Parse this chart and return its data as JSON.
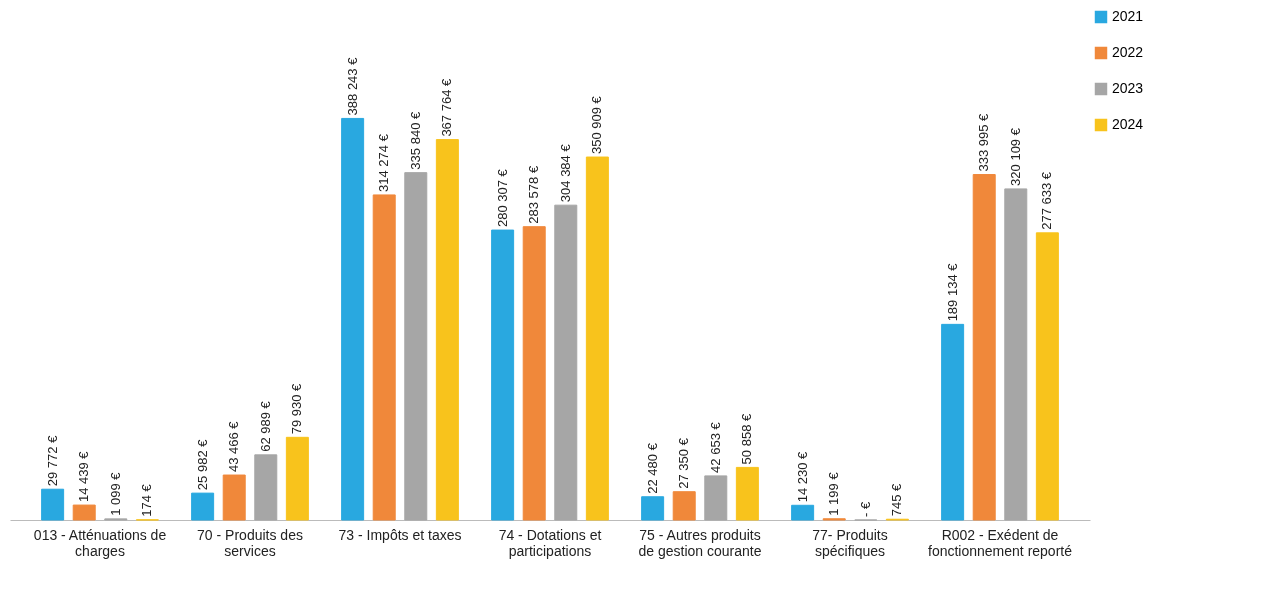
{
  "chart_data": {
    "type": "bar",
    "categories": [
      "013 - Atténuations de charges",
      "70 - Produits des services",
      "73 - Impôts et taxes",
      "74 - Dotations et participations",
      "75 - Autres produits de gestion courante",
      "77- Produits spécifiques",
      "R002 - Exédent de fonctionnement reporté"
    ],
    "series": [
      {
        "name": "2021",
        "color": "#29a8e0",
        "values": [
          29772,
          25982,
          388243,
          280307,
          22480,
          14230,
          189134
        ],
        "value_labels": [
          "29 772 €",
          "25 982 €",
          "388 243 €",
          "280 307 €",
          "22 480 €",
          "14 230 €",
          "189 134 €"
        ]
      },
      {
        "name": "2022",
        "color": "#f0883a",
        "values": [
          14439,
          43466,
          314274,
          283578,
          27350,
          1199,
          333995
        ],
        "value_labels": [
          "14 439 €",
          "43 466 €",
          "314 274 €",
          "283 578 €",
          "27 350 €",
          "1 199 €",
          "333 995 €"
        ]
      },
      {
        "name": "2023",
        "color": "#a6a6a6",
        "values": [
          1099,
          62989,
          335840,
          304384,
          42653,
          0,
          320109
        ],
        "value_labels": [
          "1 099 €",
          "62 989 €",
          "335 840 €",
          "304 384 €",
          "42 653 €",
          "-   €",
          "320 109 €"
        ]
      },
      {
        "name": "2024",
        "color": "#f8c31c",
        "values": [
          174,
          79930,
          367764,
          350909,
          50858,
          745,
          277633
        ],
        "value_labels": [
          "174 €",
          "79 930 €",
          "367 764 €",
          "350 909 €",
          "50 858 €",
          "745 €",
          "277 633 €"
        ]
      }
    ],
    "legend": "right",
    "grid": false,
    "tick_labels": "x"
  }
}
